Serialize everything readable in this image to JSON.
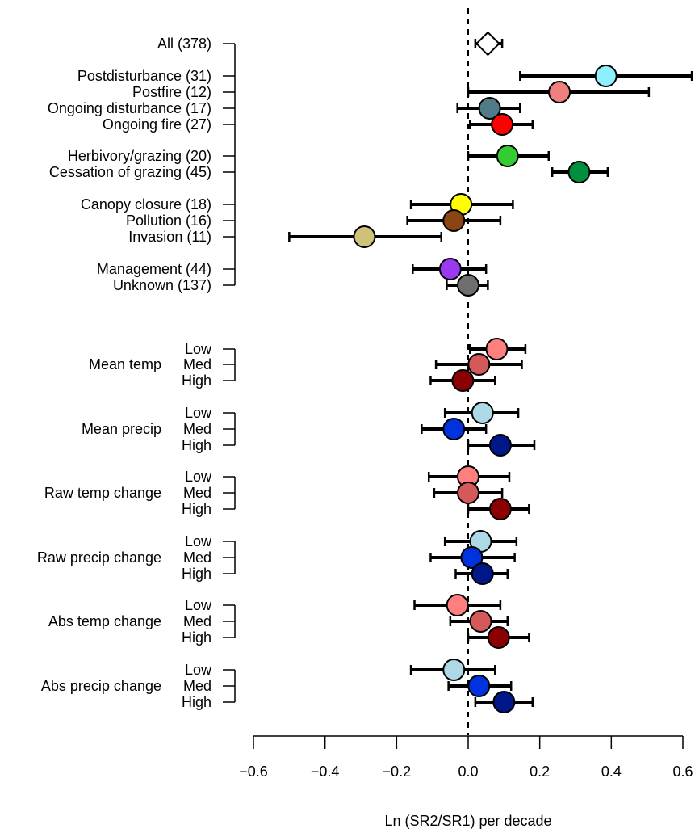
{
  "chart_data": {
    "type": "forest-plot",
    "xlabel": "Ln (SR2/SR1) per decade",
    "xlim": [
      -0.6,
      0.6
    ],
    "x_ticks": [
      -0.6,
      -0.4,
      -0.2,
      0.0,
      0.2,
      0.4,
      0.6
    ],
    "x_tick_labels": [
      "−0.6",
      "−0.4",
      "−0.2",
      "0.0",
      "0.2",
      "0.4",
      "0.6"
    ],
    "reference_line": 0,
    "reference_line_style": "dashed",
    "categories": [
      {
        "label": "All (378)",
        "estimate": 0.055,
        "ci": [
          0.02,
          0.095
        ],
        "color": "#ffffff",
        "marker": "diamond"
      },
      {
        "label": "Postdisturbance (31)",
        "estimate": 0.385,
        "ci": [
          0.145,
          0.625
        ],
        "color": "#8EF0FF",
        "marker": "circle"
      },
      {
        "label": "Postfire (12)",
        "estimate": 0.255,
        "ci": [
          0.0,
          0.505
        ],
        "color": "#F08080",
        "marker": "circle"
      },
      {
        "label": "Ongoing disturbance (17)",
        "estimate": 0.06,
        "ci": [
          -0.03,
          0.145
        ],
        "color": "#4F7C87",
        "marker": "circle"
      },
      {
        "label": "Ongoing fire (27)",
        "estimate": 0.095,
        "ci": [
          0.005,
          0.18
        ],
        "color": "#FF0000",
        "marker": "circle"
      },
      {
        "label": "Herbivory/grazing (20)",
        "estimate": 0.11,
        "ci": [
          0.0,
          0.225
        ],
        "color": "#33CC33",
        "marker": "circle"
      },
      {
        "label": "Cessation of grazing (45)",
        "estimate": 0.31,
        "ci": [
          0.235,
          0.39
        ],
        "color": "#008F3C",
        "marker": "circle"
      },
      {
        "label": "Canopy closure (18)",
        "estimate": -0.02,
        "ci": [
          -0.16,
          0.125
        ],
        "color": "#FFFF00",
        "marker": "circle"
      },
      {
        "label": "Pollution (16)",
        "estimate": -0.04,
        "ci": [
          -0.17,
          0.09
        ],
        "color": "#8B4513",
        "marker": "circle"
      },
      {
        "label": "Invasion (11)",
        "estimate": -0.29,
        "ci": [
          -0.5,
          -0.075
        ],
        "color": "#CFC07A",
        "marker": "circle"
      },
      {
        "label": "Management (44)",
        "estimate": -0.05,
        "ci": [
          -0.155,
          0.05
        ],
        "color": "#9A3AF0",
        "marker": "circle"
      },
      {
        "label": "Unknown (137)",
        "estimate": 0.0,
        "ci": [
          -0.06,
          0.055
        ],
        "color": "#6E6E6E",
        "marker": "circle"
      }
    ],
    "groups": [
      {
        "name": "Mean temp",
        "levels": [
          {
            "label": "Low",
            "estimate": 0.08,
            "ci": [
              0.005,
              0.16
            ],
            "color": "#FF7F7F"
          },
          {
            "label": "Med",
            "estimate": 0.03,
            "ci": [
              -0.09,
              0.15
            ],
            "color": "#D45A5A"
          },
          {
            "label": "High",
            "estimate": -0.015,
            "ci": [
              -0.105,
              0.075
            ],
            "color": "#8B0000"
          }
        ]
      },
      {
        "name": "Mean precip",
        "levels": [
          {
            "label": "Low",
            "estimate": 0.04,
            "ci": [
              -0.065,
              0.14
            ],
            "color": "#ADD8E6"
          },
          {
            "label": "Med",
            "estimate": -0.04,
            "ci": [
              -0.13,
              0.05
            ],
            "color": "#0033DD"
          },
          {
            "label": "High",
            "estimate": 0.09,
            "ci": [
              0.0,
              0.185
            ],
            "color": "#00178A"
          }
        ]
      },
      {
        "name": "Raw temp change",
        "levels": [
          {
            "label": "Low",
            "estimate": 0.0,
            "ci": [
              -0.11,
              0.115
            ],
            "color": "#FF7F7F"
          },
          {
            "label": "Med",
            "estimate": 0.0,
            "ci": [
              -0.095,
              0.095
            ],
            "color": "#D45A5A"
          },
          {
            "label": "High",
            "estimate": 0.09,
            "ci": [
              0.0,
              0.17
            ],
            "color": "#8B0000"
          }
        ]
      },
      {
        "name": "Raw precip change",
        "levels": [
          {
            "label": "Low",
            "estimate": 0.035,
            "ci": [
              -0.065,
              0.135
            ],
            "color": "#ADD8E6"
          },
          {
            "label": "Med",
            "estimate": 0.01,
            "ci": [
              -0.105,
              0.13
            ],
            "color": "#0033DD"
          },
          {
            "label": "High",
            "estimate": 0.04,
            "ci": [
              -0.035,
              0.11
            ],
            "color": "#00178A"
          }
        ]
      },
      {
        "name": "Abs temp change",
        "levels": [
          {
            "label": "Low",
            "estimate": -0.03,
            "ci": [
              -0.15,
              0.09
            ],
            "color": "#FF7F7F"
          },
          {
            "label": "Med",
            "estimate": 0.035,
            "ci": [
              -0.05,
              0.11
            ],
            "color": "#D45A5A"
          },
          {
            "label": "High",
            "estimate": 0.085,
            "ci": [
              0.0,
              0.17
            ],
            "color": "#8B0000"
          }
        ]
      },
      {
        "name": "Abs precip change",
        "levels": [
          {
            "label": "Low",
            "estimate": -0.04,
            "ci": [
              -0.16,
              0.075
            ],
            "color": "#ADD8E6"
          },
          {
            "label": "Med",
            "estimate": 0.03,
            "ci": [
              -0.055,
              0.12
            ],
            "color": "#0033DD"
          },
          {
            "label": "High",
            "estimate": 0.1,
            "ci": [
              0.02,
              0.18
            ],
            "color": "#00178A"
          }
        ]
      }
    ]
  }
}
